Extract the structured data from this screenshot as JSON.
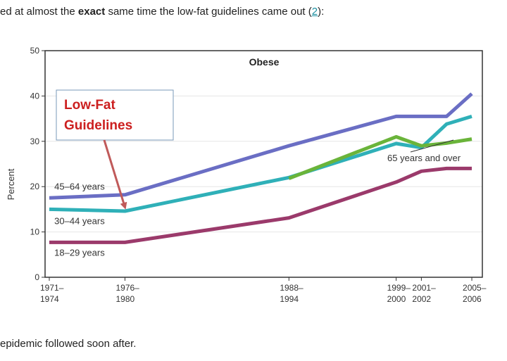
{
  "article": {
    "line1_pre": "ed at almost the ",
    "line1_bold": "exact",
    "line1_mid": " same time the low-fat guidelines came out (",
    "line1_link": "2",
    "line1_post": "):",
    "line2": "epidemic followed soon after."
  },
  "colors": {
    "age_18_29": "#9b3a6b",
    "age_30_44": "#2fb0b8",
    "age_45_64": "#6a6ec4",
    "age_65_over": "#6ab43a",
    "callout_text": "#cc1f1f",
    "arrow": "#c05a5a"
  },
  "chart_data": {
    "type": "line",
    "title": "Obese",
    "ylabel": "Percent",
    "xlabel": "",
    "ylim": [
      0,
      50
    ],
    "yticks": [
      0,
      10,
      20,
      30,
      40,
      50
    ],
    "xlim": [
      1972,
      2006
    ],
    "xticks": [
      {
        "x": 1972,
        "line1": "1971–",
        "line2": "1974"
      },
      {
        "x": 1978,
        "line1": "1976–",
        "line2": "1980"
      },
      {
        "x": 1991,
        "line1": "1988–",
        "line2": "1994"
      },
      {
        "x": 1999.5,
        "line1": "1999–",
        "line2": "2000"
      },
      {
        "x": 2001.5,
        "line1": "2001–",
        "line2": "2002"
      },
      {
        "x": 2005.5,
        "line1": "2005–",
        "line2": "2006"
      }
    ],
    "series": [
      {
        "name": "45–64 years",
        "key": "age_45_64",
        "points": [
          [
            1972,
            17.5
          ],
          [
            1978,
            18.2
          ],
          [
            1991,
            29
          ],
          [
            1999.5,
            35.5
          ],
          [
            2001.5,
            35.5
          ],
          [
            2003.5,
            35.5
          ],
          [
            2005.5,
            40.5
          ]
        ]
      },
      {
        "name": "30–44 years",
        "key": "age_30_44",
        "points": [
          [
            1972,
            15
          ],
          [
            1978,
            14.6
          ],
          [
            1991,
            22
          ],
          [
            1999.5,
            29.5
          ],
          [
            2001.5,
            28.6
          ],
          [
            2003.5,
            33.8
          ],
          [
            2005.5,
            35.5
          ]
        ]
      },
      {
        "name": "18–29 years",
        "key": "age_18_29",
        "points": [
          [
            1972,
            7.7
          ],
          [
            1978,
            7.7
          ],
          [
            1991,
            13.1
          ],
          [
            1999.5,
            21
          ],
          [
            2001.5,
            23.4
          ],
          [
            2003.5,
            24
          ],
          [
            2005.5,
            24
          ]
        ]
      },
      {
        "name": "65 years and over",
        "key": "age_65_over",
        "points": [
          [
            1991,
            21.8
          ],
          [
            1999.5,
            31
          ],
          [
            2001.5,
            29
          ],
          [
            2003.5,
            29.6
          ],
          [
            2005.5,
            30.5
          ]
        ]
      }
    ],
    "series_labels": [
      {
        "text": "45–64 years",
        "x": 1972.4,
        "y": 19.3
      },
      {
        "text": "30–44 years",
        "x": 1972.4,
        "y": 11.7
      },
      {
        "text": "18–29 years",
        "x": 1972.4,
        "y": 4.7
      },
      {
        "text": "65 years and over",
        "x": 1998.8,
        "y": 25.6
      }
    ],
    "annotation": {
      "line1": "Low-Fat",
      "line2": "Guidelines"
    },
    "grid": true,
    "legend": "none"
  }
}
